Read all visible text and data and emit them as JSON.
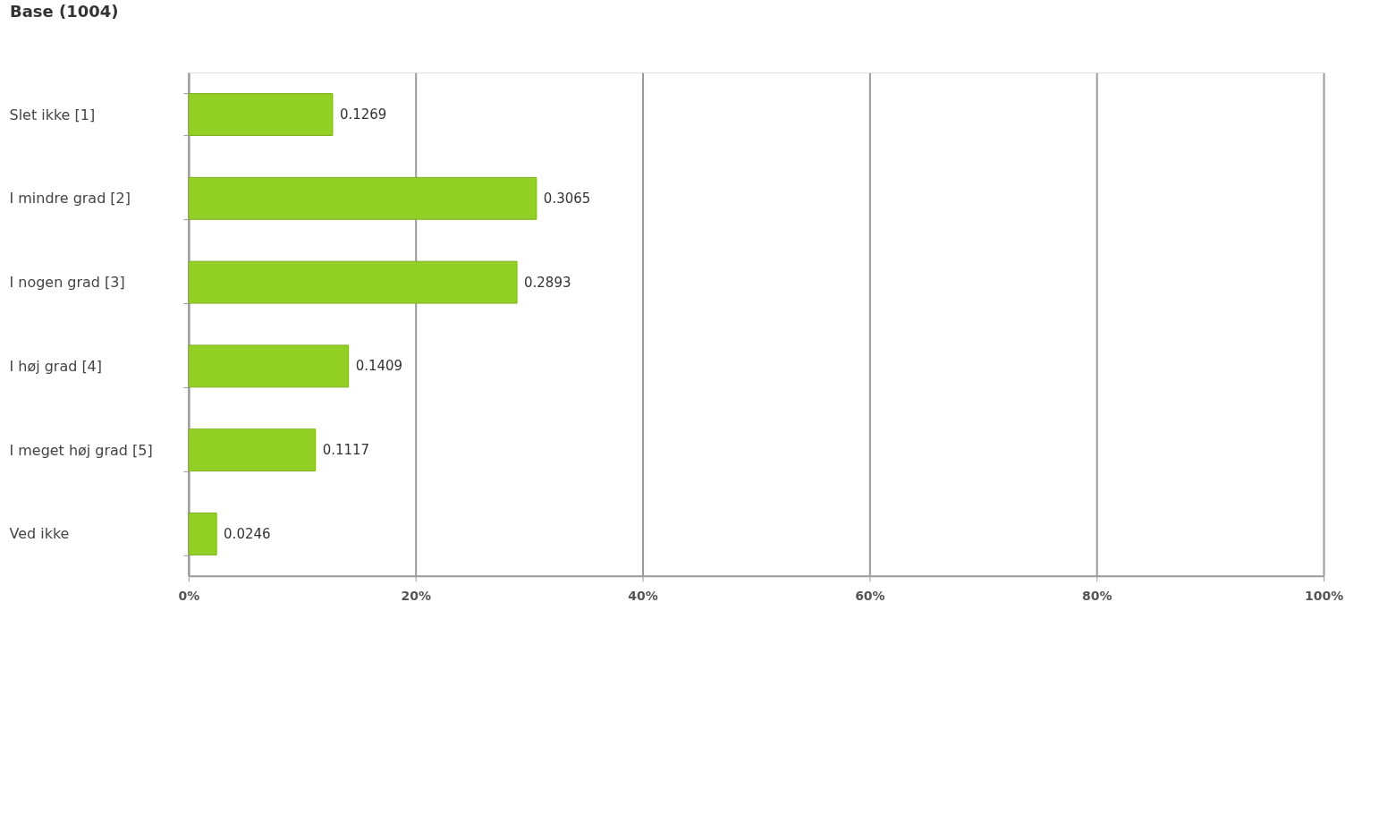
{
  "chart_data": {
    "type": "bar",
    "orientation": "horizontal",
    "title": "Base (1004)",
    "categories": [
      "Slet ikke [1]",
      "I mindre grad [2]",
      "I nogen grad [3]",
      "I høj grad [4]",
      "I meget høj grad [5]",
      "Ved ikke"
    ],
    "values": [
      0.1269,
      0.3065,
      0.2893,
      0.1409,
      0.1117,
      0.0246
    ],
    "color": "#92d026",
    "xlim": [
      0,
      1
    ],
    "xticks": [
      {
        "value": 0,
        "label": "0%"
      },
      {
        "value": 0.2,
        "label": "20%"
      },
      {
        "value": 0.4,
        "label": "40%"
      },
      {
        "value": 0.6,
        "label": "60%"
      },
      {
        "value": 0.8,
        "label": "80%"
      },
      {
        "value": 1,
        "label": "100%"
      }
    ],
    "grid": "x",
    "data_labels": true
  }
}
